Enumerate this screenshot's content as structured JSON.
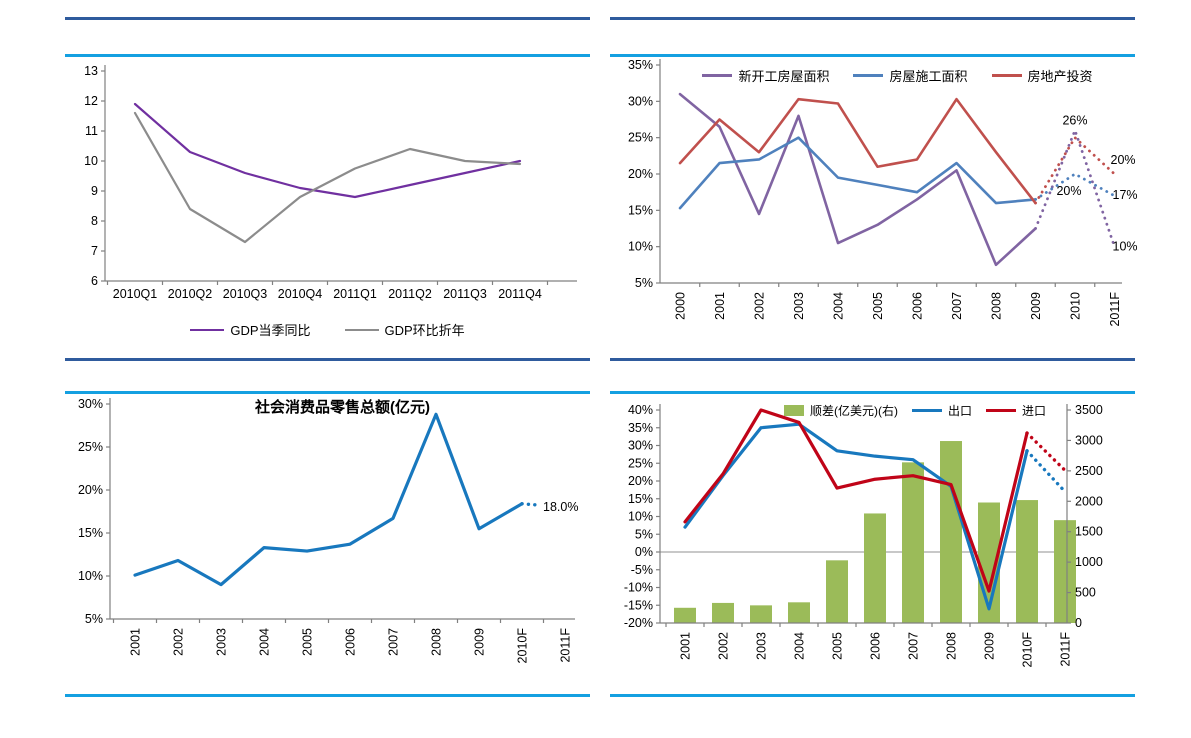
{
  "page": {
    "background": "#ffffff",
    "rule_dark_color": "#2f5b9d",
    "rule_cyan_color": "#14a0e1",
    "axis_color": "#808080",
    "zero_line_color": "#a6a6a6"
  },
  "chart_data": [
    {
      "id": "gdp",
      "type": "line",
      "title": "",
      "categories": [
        "2010Q1",
        "2010Q2",
        "2010Q3",
        "2010Q4",
        "2011Q1",
        "2011Q2",
        "2011Q3",
        "2011Q4"
      ],
      "ylim": [
        6,
        13
      ],
      "yticks": [
        13,
        12,
        11,
        10,
        9,
        8,
        7,
        6
      ],
      "ytick_suffix": "",
      "legend_position": "bottom",
      "series": [
        {
          "name": "GDP当季同比",
          "color": "#7030a0",
          "values": [
            11.9,
            10.3,
            9.6,
            9.1,
            8.8,
            9.2,
            9.6,
            10.0
          ]
        },
        {
          "name": "GDP环比折年",
          "color": "#8c8c8c",
          "values": [
            11.6,
            8.4,
            7.3,
            8.8,
            9.75,
            10.4,
            10.0,
            9.9
          ]
        }
      ]
    },
    {
      "id": "housing",
      "type": "line",
      "title": "",
      "categories": [
        "2000",
        "2001",
        "2002",
        "2003",
        "2004",
        "2005",
        "2006",
        "2007",
        "2008",
        "2009",
        "2010",
        "2011F"
      ],
      "ylim": [
        5,
        35
      ],
      "yticks": [
        35,
        30,
        25,
        20,
        15,
        10,
        5
      ],
      "ytick_suffix": "%",
      "legend_position": "top",
      "dotted_from_index": 9,
      "series": [
        {
          "name": "新开工房屋面积",
          "color": "#8064a2",
          "values": [
            31,
            26.5,
            14.5,
            28,
            10.5,
            13,
            16.5,
            20.5,
            7.5,
            12.5,
            26,
            10
          ]
        },
        {
          "name": "房屋施工面积",
          "color": "#4f81bd",
          "values": [
            15.3,
            21.5,
            22,
            25,
            19.5,
            18.5,
            17.5,
            21.5,
            16,
            16.5,
            20,
            17
          ]
        },
        {
          "name": "房地产投资",
          "color": "#c0504d",
          "values": [
            21.5,
            27.5,
            23,
            30.3,
            29.7,
            21,
            22,
            30.3,
            23,
            16,
            25,
            20
          ]
        }
      ],
      "annotations": [
        {
          "text": "26%",
          "xi": 10,
          "y": 26,
          "anchor": "middle",
          "ox": 0,
          "oy": -6
        },
        {
          "text": "20%",
          "xi": 11,
          "y": 20,
          "anchor": "start",
          "ox": -4,
          "oy": -10
        },
        {
          "text": "20%",
          "xi": 10,
          "y": 20,
          "anchor": "middle",
          "ox": -6,
          "oy": 21
        },
        {
          "text": "17%",
          "xi": 11,
          "y": 17,
          "anchor": "start",
          "ox": -2,
          "oy": 3
        },
        {
          "text": "10%",
          "xi": 11,
          "y": 10,
          "anchor": "start",
          "ox": -2,
          "oy": 4
        }
      ]
    },
    {
      "id": "retail",
      "type": "line",
      "title": "社会消费品零售总额(亿元)",
      "categories": [
        "2001",
        "2002",
        "2003",
        "2004",
        "2005",
        "2006",
        "2007",
        "2008",
        "2009",
        "2010F",
        "2011F"
      ],
      "ylim": [
        5,
        30
      ],
      "yticks": [
        30,
        25,
        20,
        15,
        10,
        5
      ],
      "ytick_suffix": "%",
      "dotted_from_index": 9,
      "dotted_trunc": 0.42,
      "series": [
        {
          "name": "",
          "color": "#1878be",
          "values": [
            10.1,
            11.8,
            9.0,
            13.3,
            12.9,
            13.7,
            16.7,
            28.8,
            15.5,
            18.4,
            18.0
          ]
        }
      ],
      "annotations": [
        {
          "text": "18.0%",
          "xi": 9,
          "y": 18.0,
          "anchor": "start",
          "ox": 21,
          "oy": 4
        }
      ]
    },
    {
      "id": "trade",
      "type": "combo",
      "title": "",
      "categories": [
        "2001",
        "2002",
        "2003",
        "2004",
        "2005",
        "2006",
        "2007",
        "2008",
        "2009",
        "2010F",
        "2011F"
      ],
      "ylim": [
        -20,
        40
      ],
      "yticks": [
        40,
        35,
        30,
        25,
        20,
        15,
        10,
        5,
        0,
        -5,
        -10,
        -15,
        -20
      ],
      "ytick_suffix": "%",
      "ylim_right": [
        0,
        3500
      ],
      "yticks_right": [
        3500,
        3000,
        2500,
        2000,
        1500,
        1000,
        500,
        0
      ],
      "zero_line": true,
      "dotted_from_index": 9,
      "legend_position": "top",
      "bars": {
        "name": "顺差(亿美元)(右)",
        "color": "#9bbb59",
        "axis": "right",
        "values": [
          250,
          330,
          290,
          340,
          1030,
          1800,
          2640,
          2990,
          1980,
          2020,
          1690
        ]
      },
      "series": [
        {
          "name": "出口",
          "color": "#1878be",
          "values": [
            7,
            21.5,
            35,
            36,
            28.5,
            27,
            26,
            18.5,
            -16,
            28.5,
            17
          ]
        },
        {
          "name": "进口",
          "color": "#c00418",
          "values": [
            8.5,
            22,
            40,
            36.5,
            18,
            20.5,
            21.5,
            19,
            -11,
            33.5,
            23
          ]
        }
      ]
    }
  ]
}
